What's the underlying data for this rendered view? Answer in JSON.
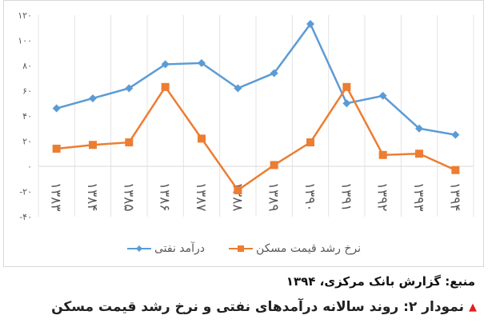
{
  "chart_data": {
    "type": "line",
    "categories": [
      "۱۳۸۳",
      "۱۳۸۴",
      "۱۳۸۵",
      "۱۳۸۶",
      "۱۳۸۷",
      "۱۳۸۸",
      "۱۳۸۹",
      "۱۳۹۰",
      "۱۳۹۱",
      "۱۳۹۲",
      "۱۳۹۳",
      "۱۳۹۴"
    ],
    "series": [
      {
        "name": "درآمد نفتی",
        "color": "#5B9BD5",
        "marker": "diamond",
        "values": [
          46,
          54,
          62,
          81,
          82,
          62,
          74,
          113,
          50,
          56,
          30,
          25
        ]
      },
      {
        "name": "نرخ رشد قیمت مسکن",
        "color": "#ED7D31",
        "marker": "square",
        "values": [
          14,
          17,
          19,
          63,
          22,
          -19,
          1,
          19,
          63,
          9,
          10,
          -3
        ]
      }
    ],
    "ylim": [
      -40,
      120
    ],
    "yticks": [
      -40,
      -20,
      0,
      20,
      40,
      60,
      80,
      100,
      120
    ],
    "ytick_labels": [
      "-۴۰",
      "-۲۰",
      "۰",
      "۲۰",
      "۴۰",
      "۶۰",
      "۸۰",
      "۱۰۰",
      "۱۲۰"
    ],
    "grid": "vertical",
    "legend": "bottom"
  },
  "source": "منبع: گزارش بانک مرکزی، ۱۳۹۴",
  "caption": "نمودار ۲: روند سالانه درآمدهای نفتی و نرخ رشد قیمت مسکن"
}
